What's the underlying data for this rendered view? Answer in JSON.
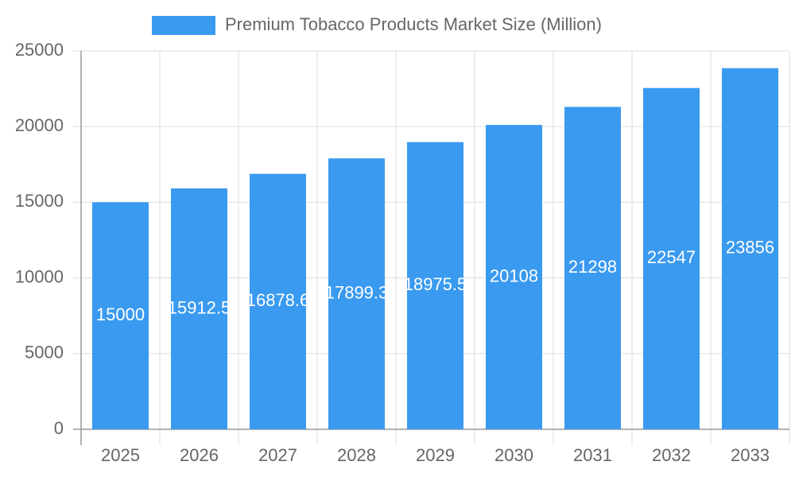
{
  "chart_data": {
    "type": "bar",
    "categories": [
      "2025",
      "2026",
      "2027",
      "2028",
      "2029",
      "2030",
      "2031",
      "2032",
      "2033"
    ],
    "series": [
      {
        "name": "Premium Tobacco Products Market Size (Million)",
        "color": "#3a9af0",
        "values": [
          15000,
          15912.5,
          16878.6,
          17899.3,
          18975.5,
          20108,
          21298,
          22547,
          23856
        ]
      }
    ],
    "ylim": [
      0,
      25000
    ],
    "yticks": [
      0,
      5000,
      10000,
      15000,
      20000,
      25000
    ],
    "grid": true,
    "legend": "top"
  }
}
